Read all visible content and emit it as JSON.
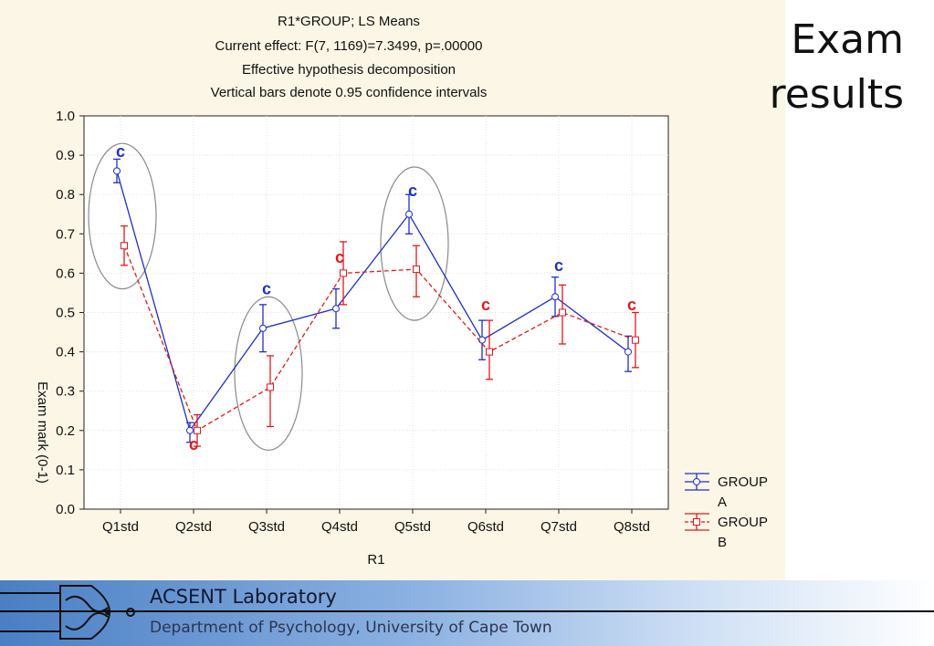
{
  "slide": {
    "title_line1": "Exam",
    "title_line2": "results"
  },
  "footer": {
    "lab_name": "ACSENT Laboratory",
    "department": "Department of Psychology, University of Cape Town"
  },
  "colors": {
    "group_a": "#1f2fc8",
    "group_b": "#e01a1a",
    "background": "#fbf6e6"
  },
  "chart_data": {
    "type": "line",
    "title_lines": [
      "R1*GROUP; LS Means",
      "Current effect: F(7, 1169)=7.3499, p=.00000",
      "Effective hypothesis decomposition",
      "Vertical bars denote 0.95 confidence intervals"
    ],
    "xlabel": "R1",
    "ylabel": "Exam mark (0-1)",
    "ylim": [
      0,
      1
    ],
    "yticks": [
      "0.0",
      "0.1",
      "0.2",
      "0.3",
      "0.4",
      "0.5",
      "0.6",
      "0.7",
      "0.8",
      "0.9",
      "1.0"
    ],
    "categories": [
      "Q1std",
      "Q2std",
      "Q3std",
      "Q4std",
      "Q5std",
      "Q6std",
      "Q7std",
      "Q8std"
    ],
    "grid": true,
    "legend_position": "right",
    "series": [
      {
        "name": "GROUP A",
        "color": "#1f2fc8",
        "style": "solid",
        "values": [
          0.86,
          0.2,
          0.46,
          0.51,
          0.75,
          0.43,
          0.54,
          0.4
        ],
        "ci_low": [
          0.83,
          0.17,
          0.4,
          0.46,
          0.7,
          0.38,
          0.49,
          0.35
        ],
        "ci_high": [
          0.89,
          0.22,
          0.52,
          0.56,
          0.8,
          0.48,
          0.59,
          0.44
        ]
      },
      {
        "name": "GROUP B",
        "color": "#e01a1a",
        "style": "dashed",
        "values": [
          0.67,
          0.2,
          0.31,
          0.6,
          0.61,
          0.4,
          0.5,
          0.43
        ],
        "ci_low": [
          0.62,
          0.16,
          0.21,
          0.52,
          0.54,
          0.33,
          0.42,
          0.36
        ],
        "ci_high": [
          0.72,
          0.24,
          0.39,
          0.68,
          0.67,
          0.48,
          0.57,
          0.5
        ]
      }
    ],
    "annotations": [
      {
        "text": "c",
        "color": "#1f2fc8",
        "category": 0,
        "y": 0.91
      },
      {
        "text": "c",
        "color": "#e01a1a",
        "category": 1,
        "y": 0.165
      },
      {
        "text": "c",
        "color": "#1f2fc8",
        "category": 2,
        "y": 0.56
      },
      {
        "text": "c",
        "color": "#e01a1a",
        "category": 3,
        "y": 0.64
      },
      {
        "text": "c",
        "color": "#1f2fc8",
        "category": 4,
        "y": 0.81
      },
      {
        "text": "c",
        "color": "#e01a1a",
        "category": 5,
        "y": 0.52
      },
      {
        "text": "c",
        "color": "#1f2fc8",
        "category": 6,
        "y": 0.62
      },
      {
        "text": "c",
        "color": "#e01a1a",
        "category": 7,
        "y": 0.52
      }
    ],
    "ellipses": [
      {
        "category": 0,
        "y_low": 0.56,
        "y_high": 0.93
      },
      {
        "category": 2,
        "y_low": 0.15,
        "y_high": 0.54
      },
      {
        "category": 4,
        "y_low": 0.48,
        "y_high": 0.87
      }
    ]
  }
}
